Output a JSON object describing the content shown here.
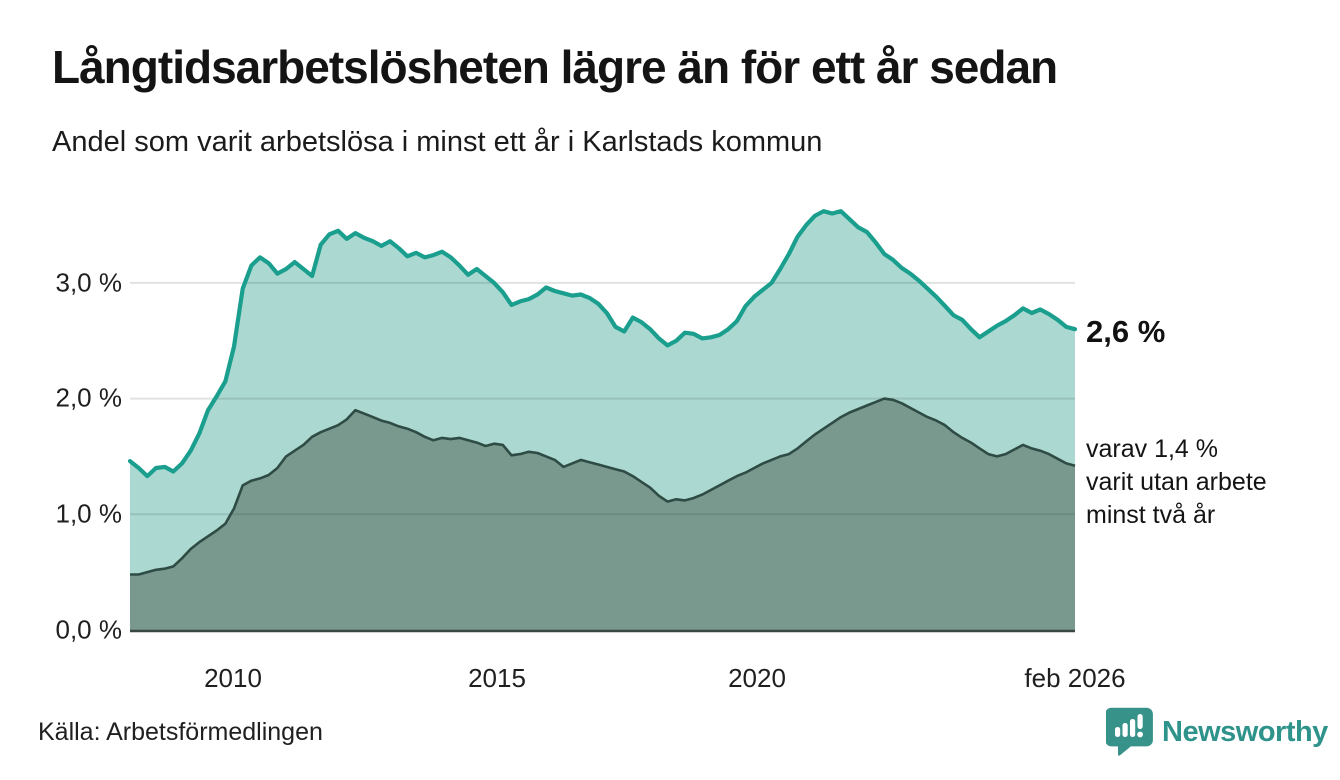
{
  "header": {
    "title": "Långtidsarbetslösheten lägre än för ett år sedan",
    "subtitle": "Andel som varit arbetslösa i minst ett år i Karlstads kommun"
  },
  "annotations": {
    "end_value_label": "2,6 %",
    "secondary_lines": [
      "varav 1,4 %",
      "varit utan arbete",
      "minst två år"
    ]
  },
  "footer": {
    "source": "Källa: Arbetsförmedlingen",
    "logo_text": "Newsworthy"
  },
  "icons": {
    "logo_icon": "newsworthy-bar-chart-bubble"
  },
  "colors": {
    "line_total": "#1a9e8e",
    "fill_total": "#abd8d1",
    "line_two_years": "#2e4c44",
    "fill_two_years": "#79998f",
    "gridline": "rgba(40,60,55,0.14)",
    "axis_line": "#3a4742",
    "logo_teal": "#37938a"
  },
  "chart_data": {
    "type": "area",
    "title": "Långtidsarbetslösheten lägre än för ett år sedan",
    "subtitle": "Andel som varit arbetslösa i minst ett år i Karlstads kommun",
    "x_unit": "decimal_year",
    "x_start": 2008.0,
    "x_end": 2026.083,
    "xlim": [
      2008.0,
      2026.083
    ],
    "ylim": [
      0,
      3.72
    ],
    "grid": "horizontal",
    "y_ticks": [
      {
        "value": 0.0,
        "label": "0,0 %"
      },
      {
        "value": 1.0,
        "label": "1,0 %"
      },
      {
        "value": 2.0,
        "label": "2,0 %"
      },
      {
        "value": 3.0,
        "label": "3,0 %"
      }
    ],
    "x_ticks": [
      {
        "value": 2010.0,
        "label": "2010"
      },
      {
        "value": 2015.0,
        "label": "2015"
      },
      {
        "value": 2020.0,
        "label": "2020"
      },
      {
        "value": 2026.083,
        "label": "feb 2026"
      }
    ],
    "series": [
      {
        "name": "Arbetslösa minst ett år",
        "end_label": "2,6 %",
        "end_value": 2.6,
        "values": [
          1.46,
          1.4,
          1.33,
          1.4,
          1.41,
          1.37,
          1.44,
          1.55,
          1.7,
          1.9,
          2.02,
          2.15,
          2.45,
          2.95,
          3.15,
          3.22,
          3.17,
          3.08,
          3.12,
          3.18,
          3.12,
          3.06,
          3.33,
          3.42,
          3.45,
          3.38,
          3.43,
          3.39,
          3.36,
          3.32,
          3.36,
          3.3,
          3.23,
          3.26,
          3.22,
          3.24,
          3.27,
          3.22,
          3.15,
          3.07,
          3.12,
          3.06,
          3.0,
          2.92,
          2.81,
          2.84,
          2.86,
          2.9,
          2.96,
          2.93,
          2.91,
          2.89,
          2.9,
          2.87,
          2.82,
          2.74,
          2.62,
          2.58,
          2.7,
          2.66,
          2.6,
          2.52,
          2.46,
          2.5,
          2.57,
          2.56,
          2.52,
          2.53,
          2.55,
          2.6,
          2.67,
          2.8,
          2.88,
          2.94,
          3.0,
          3.12,
          3.25,
          3.4,
          3.5,
          3.58,
          3.62,
          3.6,
          3.62,
          3.55,
          3.48,
          3.44,
          3.35,
          3.25,
          3.2,
          3.13,
          3.08,
          3.02,
          2.95,
          2.88,
          2.8,
          2.72,
          2.68,
          2.6,
          2.53,
          2.58,
          2.63,
          2.67,
          2.72,
          2.78,
          2.74,
          2.77,
          2.73,
          2.68,
          2.62,
          2.6
        ]
      },
      {
        "name": "varav utan arbete minst två år",
        "end_label": "varav 1,4 % varit utan arbete minst två år",
        "end_value": 1.4,
        "values": [
          0.48,
          0.48,
          0.5,
          0.52,
          0.53,
          0.55,
          0.62,
          0.7,
          0.76,
          0.81,
          0.86,
          0.92,
          1.05,
          1.25,
          1.29,
          1.31,
          1.34,
          1.4,
          1.5,
          1.55,
          1.6,
          1.67,
          1.71,
          1.74,
          1.77,
          1.82,
          1.9,
          1.87,
          1.84,
          1.81,
          1.79,
          1.76,
          1.74,
          1.71,
          1.67,
          1.64,
          1.66,
          1.65,
          1.66,
          1.64,
          1.62,
          1.59,
          1.61,
          1.6,
          1.51,
          1.52,
          1.54,
          1.53,
          1.5,
          1.47,
          1.41,
          1.44,
          1.47,
          1.45,
          1.43,
          1.41,
          1.39,
          1.37,
          1.33,
          1.28,
          1.23,
          1.16,
          1.11,
          1.13,
          1.12,
          1.14,
          1.17,
          1.21,
          1.25,
          1.29,
          1.33,
          1.36,
          1.4,
          1.44,
          1.47,
          1.5,
          1.52,
          1.57,
          1.63,
          1.69,
          1.74,
          1.79,
          1.84,
          1.88,
          1.91,
          1.94,
          1.97,
          2.0,
          1.99,
          1.96,
          1.92,
          1.88,
          1.84,
          1.81,
          1.77,
          1.71,
          1.66,
          1.62,
          1.57,
          1.52,
          1.5,
          1.52,
          1.56,
          1.6,
          1.57,
          1.55,
          1.52,
          1.48,
          1.44,
          1.42
        ]
      }
    ]
  }
}
